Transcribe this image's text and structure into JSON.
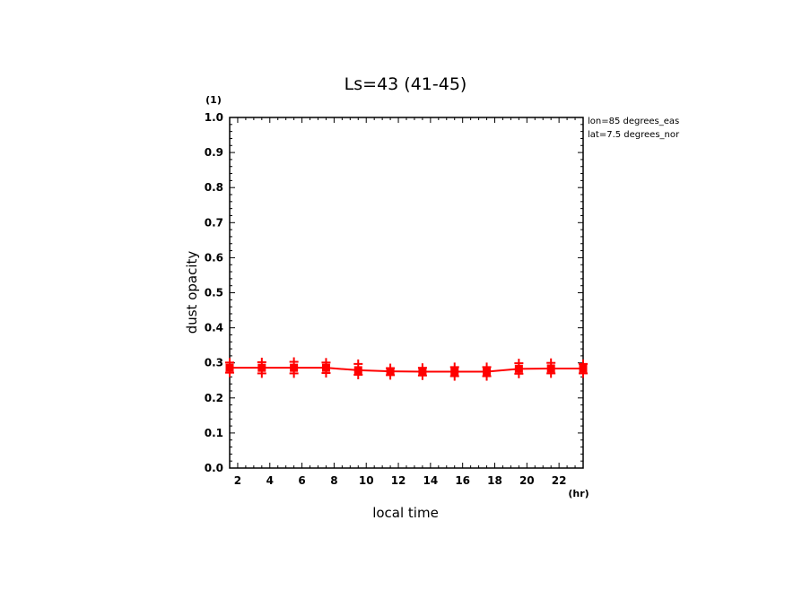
{
  "chart_data": {
    "type": "line",
    "title": "Ls=43 (41-45)",
    "xlabel": "local time",
    "ylabel": "dust opacity",
    "x_unit": "(hr)",
    "y_unit": "(1)",
    "xlim": [
      1.5,
      23.5
    ],
    "ylim": [
      0.0,
      1.0
    ],
    "xticks": [
      2,
      4,
      6,
      8,
      10,
      12,
      14,
      16,
      18,
      20,
      22
    ],
    "yticks": [
      0.0,
      0.1,
      0.2,
      0.3,
      0.4,
      0.5,
      0.6,
      0.7,
      0.8,
      0.9,
      1.0
    ],
    "annotations": [
      "lon=85 degrees_eas",
      "lat=7.5 degrees_nor"
    ],
    "color": "#ff0000",
    "series": [
      {
        "x": [
          1.5,
          3.5,
          5.5,
          7.5,
          9.5,
          11.5,
          13.5,
          15.5,
          17.5,
          19.5,
          21.5,
          23.5
        ],
        "values": [
          0.286,
          0.286,
          0.286,
          0.286,
          0.279,
          0.276,
          0.275,
          0.275,
          0.275,
          0.283,
          0.284,
          0.284
        ],
        "upper": [
          0.301,
          0.302,
          0.303,
          0.301,
          0.297,
          0.285,
          0.286,
          0.288,
          0.288,
          0.299,
          0.3,
          0.297
        ],
        "lower": [
          0.272,
          0.27,
          0.27,
          0.271,
          0.266,
          0.265,
          0.264,
          0.262,
          0.262,
          0.269,
          0.27,
          0.27
        ]
      }
    ]
  }
}
